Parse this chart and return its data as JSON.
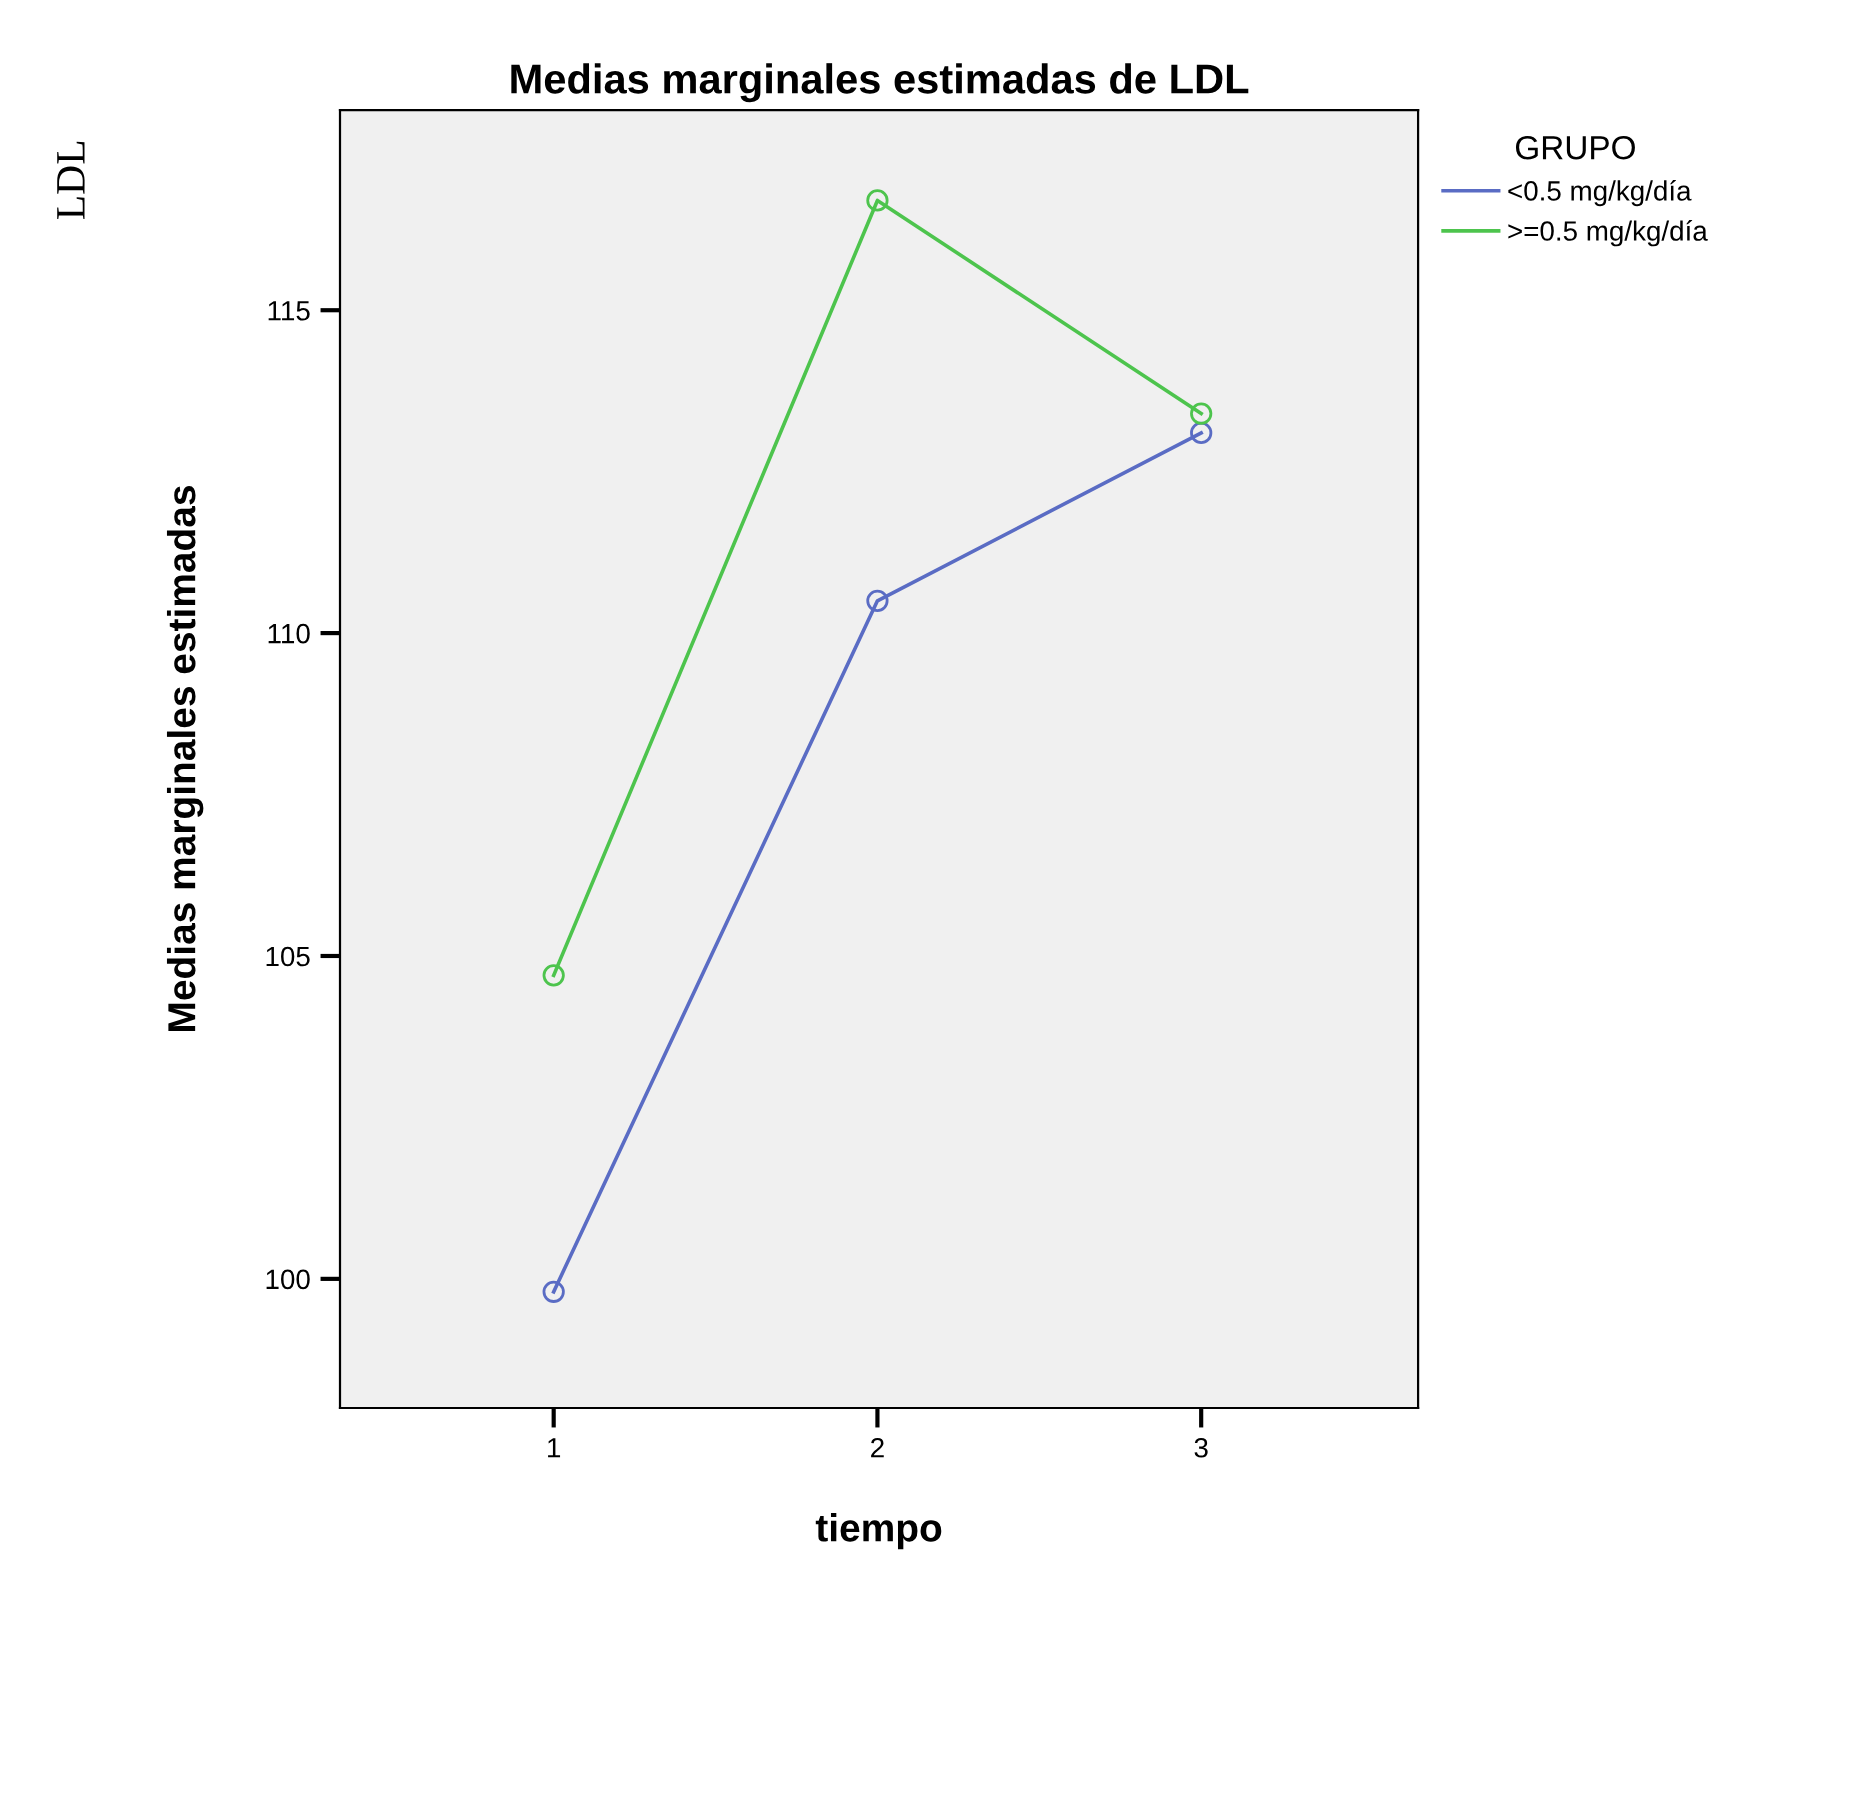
{
  "chart_data": {
    "type": "line",
    "title": "Medias marginales estimadas de LDL",
    "xlabel": "tiempo",
    "ylabel": "Medias marginales estimadas",
    "legend_title": "GRUPO",
    "annotations": [
      "LDL"
    ],
    "x": [
      1,
      2,
      3
    ],
    "series": [
      {
        "name": "<0.5 mg/kg/día",
        "color": "#5a6cc4",
        "values": [
          99.8,
          110.5,
          113.1
        ]
      },
      {
        "name": ">=0.5 mg/kg/día",
        "color": "#4dc44d",
        "values": [
          104.7,
          116.7,
          113.4
        ]
      }
    ],
    "xlim": [
      0.34,
      3.67
    ],
    "ylim": [
      98.0,
      118.1
    ],
    "xticks": [
      1,
      2,
      3
    ],
    "yticks": [
      100,
      105,
      110,
      115
    ],
    "grid": false,
    "legend": "top right",
    "marker": "circle",
    "line_style": "solid"
  }
}
